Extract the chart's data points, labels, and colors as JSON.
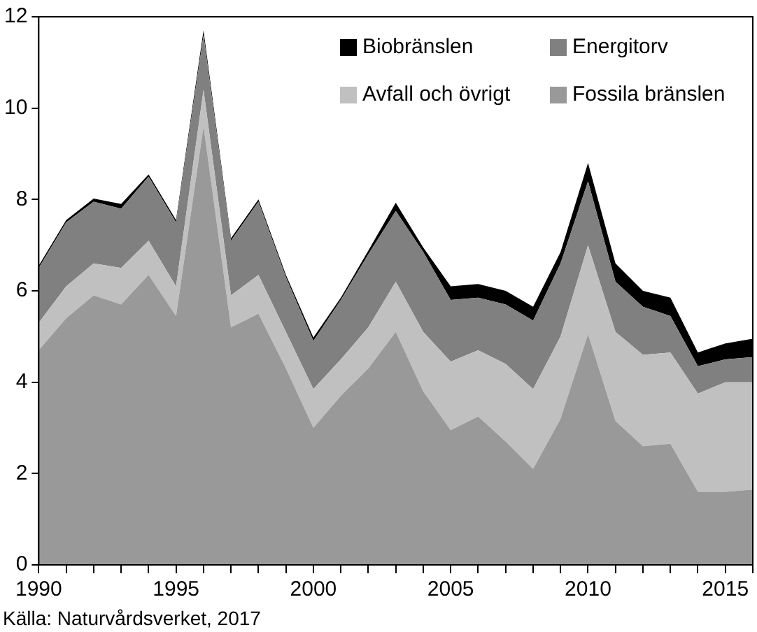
{
  "chart_data": {
    "type": "area",
    "stacked": true,
    "x": [
      1990,
      1991,
      1992,
      1993,
      1994,
      1995,
      1996,
      1997,
      1998,
      1999,
      2000,
      2001,
      2002,
      2003,
      2004,
      2005,
      2006,
      2007,
      2008,
      2009,
      2010,
      2011,
      2012,
      2013,
      2014,
      2015,
      2016
    ],
    "xlim": [
      1990,
      2016
    ],
    "xticks": [
      1990,
      {
        "value": 1991,
        "label": null
      },
      {
        "value": 1992,
        "label": null
      },
      {
        "value": 1993,
        "label": null
      },
      {
        "value": 1994,
        "label": null
      },
      1995,
      {
        "value": 1996,
        "label": null
      },
      {
        "value": 1997,
        "label": null
      },
      {
        "value": 1998,
        "label": null
      },
      {
        "value": 1999,
        "label": null
      },
      2000,
      {
        "value": 2001,
        "label": null
      },
      {
        "value": 2002,
        "label": null
      },
      {
        "value": 2003,
        "label": null
      },
      {
        "value": 2004,
        "label": null
      },
      2005,
      {
        "value": 2006,
        "label": null
      },
      {
        "value": 2007,
        "label": null
      },
      {
        "value": 2008,
        "label": null
      },
      {
        "value": 2009,
        "label": null
      },
      2010,
      {
        "value": 2011,
        "label": null
      },
      {
        "value": 2012,
        "label": null
      },
      {
        "value": 2013,
        "label": null
      },
      {
        "value": 2014,
        "label": null
      },
      2015,
      {
        "value": 2016,
        "label": null
      }
    ],
    "ylim": [
      0,
      12
    ],
    "yticks": [
      0,
      2,
      4,
      6,
      8,
      10,
      12
    ],
    "grid": false,
    "legend": "top right",
    "annotations": [
      "Källa: Naturvårdsverket, 2017"
    ],
    "series": [
      {
        "name": "Fossila bränslen",
        "color": "#999999",
        "values": [
          4.7,
          5.4,
          5.9,
          5.7,
          6.35,
          5.45,
          9.6,
          5.2,
          5.5,
          4.3,
          3.0,
          3.7,
          4.3,
          5.1,
          3.8,
          2.95,
          3.25,
          2.7,
          2.1,
          3.2,
          5.05,
          3.15,
          2.6,
          2.65,
          1.6,
          1.6,
          1.65
        ]
      },
      {
        "name": "Avfall och övrigt",
        "color": "#c0c0c0",
        "values": [
          0.6,
          0.7,
          0.7,
          0.8,
          0.75,
          0.65,
          0.8,
          0.7,
          0.85,
          0.8,
          0.85,
          0.8,
          0.9,
          1.1,
          1.3,
          1.5,
          1.45,
          1.7,
          1.75,
          1.8,
          1.95,
          1.95,
          2.0,
          2.0,
          2.15,
          2.4,
          2.35
        ]
      },
      {
        "name": "Energitorv",
        "color": "#808080",
        "values": [
          1.2,
          1.4,
          1.35,
          1.3,
          1.4,
          1.4,
          1.2,
          1.2,
          1.6,
          1.2,
          1.05,
          1.3,
          1.6,
          1.55,
          1.75,
          1.35,
          1.15,
          1.3,
          1.5,
          1.6,
          1.4,
          1.1,
          1.05,
          0.8,
          0.6,
          0.5,
          0.55
        ]
      },
      {
        "name": "Biobränslen",
        "color": "#000000",
        "values": [
          0.05,
          0.05,
          0.07,
          0.1,
          0.05,
          0.05,
          0.1,
          0.05,
          0.05,
          0.05,
          0.08,
          0.05,
          0.08,
          0.18,
          0.1,
          0.3,
          0.3,
          0.3,
          0.3,
          0.25,
          0.4,
          0.4,
          0.35,
          0.4,
          0.3,
          0.35,
          0.4
        ]
      }
    ]
  }
}
